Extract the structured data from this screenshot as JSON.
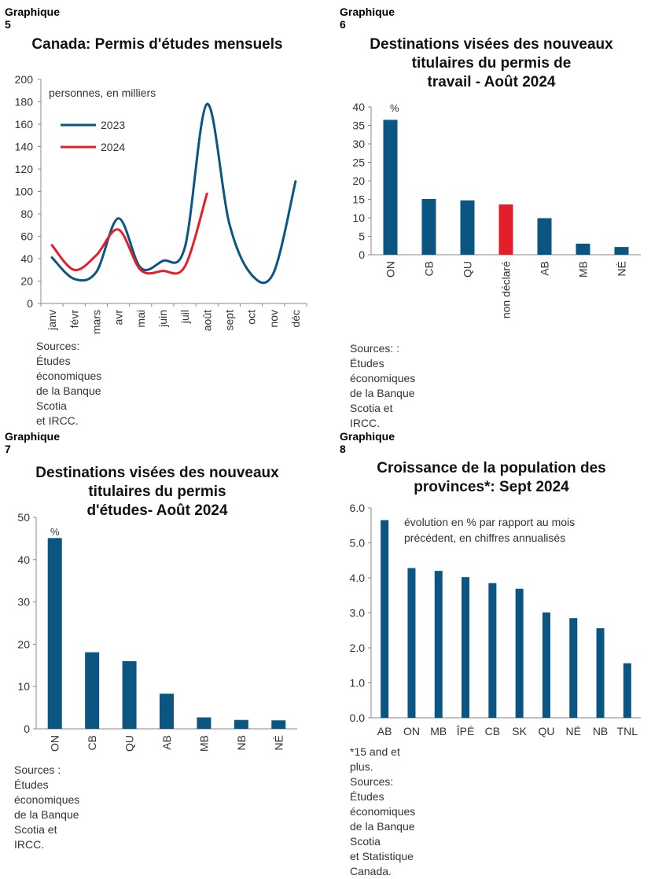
{
  "colors": {
    "navy": "#0a5582",
    "red": "#e3202a",
    "axis": "#888888"
  },
  "charts": [
    {
      "label": "Graphique 5",
      "title_lines": [
        "Canada: Permis d'études mensuels"
      ],
      "source_lines": [
        "Sources: Études économiques de la Banque Scotia",
        "et IRCC."
      ],
      "chart_data": {
        "type": "line",
        "title": "Canada: Permis d'études mensuels",
        "unit_label": "personnes, en milliers",
        "categories": [
          "janv",
          "févr",
          "mars",
          "avr",
          "mai",
          "juin",
          "juil",
          "août",
          "sept",
          "oct",
          "nov",
          "déc"
        ],
        "series": [
          {
            "name": "2023",
            "color": "#0a5582",
            "values": [
              41,
              22,
              28,
              76,
              32,
              38,
              50,
              178,
              72,
              26,
              27,
              109
            ]
          },
          {
            "name": "2024",
            "color": "#e3202a",
            "values": [
              52,
              30,
              43,
              66,
              30,
              29,
              33,
              98,
              null,
              null,
              null,
              null
            ]
          }
        ],
        "ylim": [
          0,
          200
        ],
        "yticks": [
          "0",
          "20",
          "40",
          "60",
          "80",
          "100",
          "120",
          "140",
          "160",
          "180",
          "200"
        ],
        "legend_placement": "top-left",
        "grid": false
      }
    },
    {
      "label": "Graphique 6",
      "title_lines": [
        "Destinations visées des nouveaux",
        "titulaires du permis de",
        "travail - Août 2024"
      ],
      "source_lines": [
        "Sources: : Études économiques de la Banque",
        "Scotia et IRCC."
      ],
      "chart_data": {
        "type": "bar",
        "title": "Destinations visées des nouveaux titulaires du permis de travail - Août 2024",
        "unit_label": "%",
        "categories": [
          "ON",
          "CB",
          "QU",
          "non déclaré",
          "AB",
          "MB",
          "NÉ"
        ],
        "values": [
          36.5,
          15.1,
          14.7,
          13.6,
          9.9,
          3.0,
          2.1
        ],
        "highlight": [
          false,
          false,
          false,
          true,
          false,
          false,
          false
        ],
        "ylim": [
          0,
          40
        ],
        "yticks": [
          "0",
          "5",
          "10",
          "15",
          "20",
          "25",
          "30",
          "35",
          "40"
        ],
        "grid": false
      }
    },
    {
      "label": "Graphique 7",
      "title_lines": [
        "Destinations visées des nouveaux",
        "titulaires du permis",
        "d'études- Août 2024"
      ],
      "source_lines": [
        "Sources : Études économiques de la Banque",
        "Scotia et IRCC."
      ],
      "chart_data": {
        "type": "bar",
        "title": "Destinations visées des nouveaux titulaires du permis d'études- Août 2024",
        "unit_label": "%",
        "categories": [
          "ON",
          "CB",
          "QU",
          "AB",
          "MB",
          "NB",
          "NÉ"
        ],
        "values": [
          45.1,
          18.1,
          16.0,
          8.3,
          2.7,
          2.1,
          2.0
        ],
        "ylim": [
          0,
          50
        ],
        "yticks": [
          "0",
          "10",
          "20",
          "30",
          "40",
          "50"
        ],
        "grid": false
      }
    },
    {
      "label": "Graphique 8",
      "title_lines": [
        "Croissance de la population des",
        "provinces*: Sept 2024"
      ],
      "source_lines": [
        "*15 and et plus.",
        "Sources: Études économiques de la Banque Scotia",
        "et Statistique Canada."
      ],
      "chart_data": {
        "type": "bar",
        "title": "Croissance de la population des provinces*: Sept 2024",
        "annotation_lines": [
          "évolution en % par rapport au mois",
          "précédent, en chiffres annualisés"
        ],
        "categories": [
          "AB",
          "ON",
          "MB",
          "ÎPÉ",
          "CB",
          "SK",
          "QU",
          "NÉ",
          "NB",
          "TNL"
        ],
        "values": [
          5.65,
          4.28,
          4.2,
          4.02,
          3.85,
          3.69,
          3.01,
          2.85,
          2.56,
          1.56
        ],
        "ylim": [
          0,
          6
        ],
        "yticks": [
          "0.0",
          "1.0",
          "2.0",
          "3.0",
          "4.0",
          "5.0",
          "6.0"
        ],
        "grid": false
      }
    }
  ]
}
